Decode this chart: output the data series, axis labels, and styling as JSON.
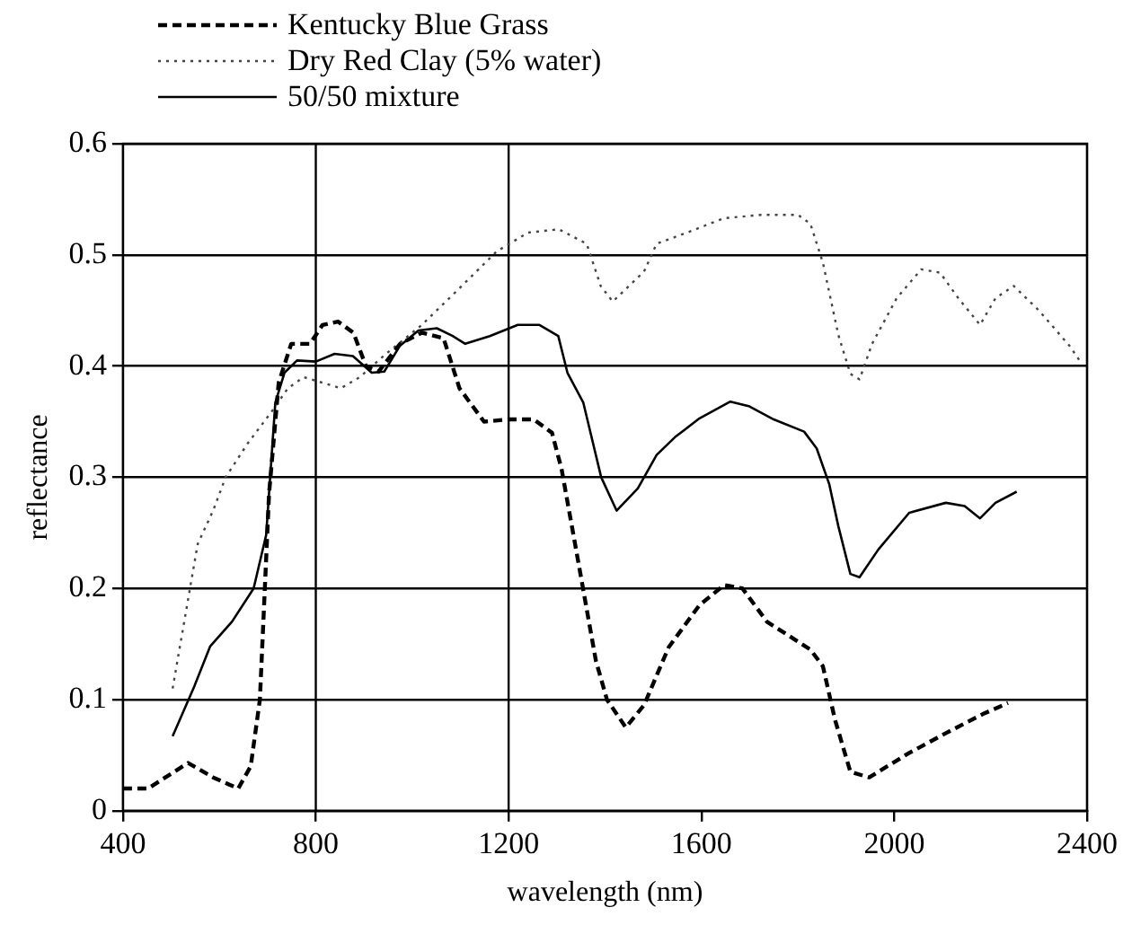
{
  "chart_data": {
    "type": "line",
    "xlabel": "wavelength (nm)",
    "ylabel": "reflectance",
    "xlim": [
      400,
      2400
    ],
    "xticks": [
      400,
      800,
      1200,
      1600,
      2000,
      2400
    ],
    "ylim": [
      0,
      0.6
    ],
    "yticks": [
      0,
      0.1,
      0.2,
      0.3,
      0.4,
      0.5,
      0.6
    ],
    "grid": "y",
    "legend": "top left",
    "marker": "none",
    "ref_lines": [
      {
        "axis": "x",
        "value": 800
      },
      {
        "axis": "x",
        "value": 1200
      }
    ],
    "series": [
      {
        "name": "Kentucky Blue Grass",
        "color": "#000000",
        "line_style": "dashed",
        "x": [
          400,
          452,
          535,
          587,
          639,
          665,
          684,
          703,
          723,
          749,
          788,
          814,
          846,
          878,
          904,
          930,
          975,
          1020,
          1065,
          1098,
          1149,
          1200,
          1252,
          1290,
          1310,
          1342,
          1381,
          1404,
          1443,
          1481,
          1532,
          1596,
          1647,
          1685,
          1736,
          1826,
          1852,
          1877,
          1909,
          1948,
          2031,
          2108,
          2184,
          2236
        ],
        "values": [
          0.02,
          0.02,
          0.043,
          0.03,
          0.02,
          0.04,
          0.1,
          0.285,
          0.385,
          0.42,
          0.42,
          0.437,
          0.44,
          0.43,
          0.4,
          0.395,
          0.42,
          0.43,
          0.425,
          0.38,
          0.35,
          0.352,
          0.352,
          0.34,
          0.307,
          0.23,
          0.135,
          0.1,
          0.075,
          0.095,
          0.147,
          0.185,
          0.203,
          0.2,
          0.17,
          0.145,
          0.13,
          0.082,
          0.035,
          0.03,
          0.052,
          0.07,
          0.087,
          0.097
        ]
      },
      {
        "name": "Dry Red Clay (5% water)",
        "color": "#444444",
        "line_style": "dotted",
        "x": [
          503,
          529,
          555,
          587,
          613,
          658,
          710,
          742,
          775,
          814,
          852,
          891,
          943,
          1020,
          1098,
          1175,
          1240,
          1304,
          1362,
          1391,
          1416,
          1481,
          1507,
          1570,
          1647,
          1724,
          1800,
          1826,
          1852,
          1884,
          1909,
          1928,
          1954,
          2005,
          2056,
          2095,
          2133,
          2178,
          2210,
          2248,
          2300,
          2364,
          2389
        ],
        "values": [
          0.11,
          0.175,
          0.24,
          0.27,
          0.3,
          0.33,
          0.36,
          0.38,
          0.39,
          0.385,
          0.38,
          0.39,
          0.41,
          0.437,
          0.47,
          0.503,
          0.52,
          0.523,
          0.51,
          0.472,
          0.458,
          0.485,
          0.51,
          0.52,
          0.533,
          0.536,
          0.536,
          0.528,
          0.493,
          0.428,
          0.393,
          0.388,
          0.42,
          0.461,
          0.487,
          0.484,
          0.461,
          0.437,
          0.461,
          0.472,
          0.45,
          0.418,
          0.402
        ]
      },
      {
        "name": "50/50 mixture",
        "color": "#000000",
        "line_style": "solid",
        "x": [
          503,
          548,
          581,
          626,
          671,
          697,
          716,
          735,
          761,
          800,
          839,
          877,
          916,
          942,
          974,
          1013,
          1051,
          1084,
          1110,
          1161,
          1219,
          1264,
          1303,
          1322,
          1355,
          1392,
          1424,
          1468,
          1507,
          1545,
          1596,
          1660,
          1698,
          1750,
          1813,
          1839,
          1865,
          1884,
          1909,
          1928,
          1967,
          2031,
          2107,
          2146,
          2178,
          2210,
          2254
        ],
        "values": [
          0.067,
          0.112,
          0.148,
          0.17,
          0.2,
          0.248,
          0.367,
          0.394,
          0.405,
          0.404,
          0.411,
          0.409,
          0.394,
          0.395,
          0.418,
          0.432,
          0.434,
          0.427,
          0.42,
          0.427,
          0.437,
          0.437,
          0.427,
          0.394,
          0.367,
          0.3,
          0.27,
          0.29,
          0.32,
          0.336,
          0.353,
          0.368,
          0.364,
          0.352,
          0.341,
          0.326,
          0.294,
          0.256,
          0.213,
          0.21,
          0.235,
          0.268,
          0.277,
          0.274,
          0.263,
          0.277,
          0.287
        ]
      }
    ]
  }
}
